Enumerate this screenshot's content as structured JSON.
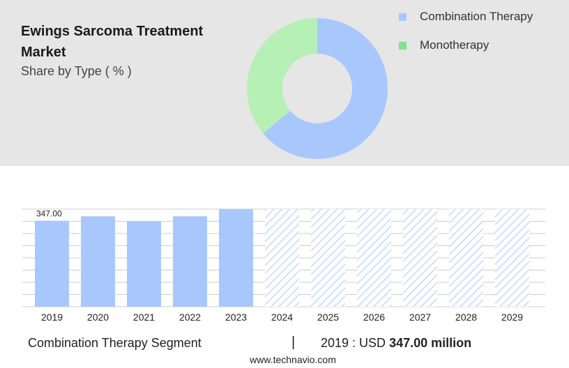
{
  "header": {
    "title": "Ewings Sarcoma Treatment Market",
    "subtitle": "Share by Type ( % )"
  },
  "legend": [
    {
      "label": "Combination Therapy",
      "color": "#a8c8fd"
    },
    {
      "label": "Monotherapy",
      "color": "#7ee38f"
    }
  ],
  "footer": {
    "segment": "Combination Therapy Segment",
    "separator": "|",
    "year_prefix": "2019 : USD ",
    "value": "347.00 million",
    "source": "www.technavio.com"
  },
  "chart_data": [
    {
      "type": "pie",
      "donut": true,
      "slices": [
        {
          "label": "Combination Therapy",
          "value": 64,
          "color": "#a8c8fd"
        },
        {
          "label": "Monotherapy",
          "value": 36,
          "color": "#b6f0b6"
        }
      ]
    },
    {
      "type": "bar",
      "categories": [
        "2019",
        "2020",
        "2021",
        "2022",
        "2023",
        "2024",
        "2025",
        "2026",
        "2027",
        "2028",
        "2029"
      ],
      "values": [
        347.0,
        365,
        345,
        365,
        394,
        394,
        394,
        394,
        394,
        394,
        394
      ],
      "forecast_from": "2024",
      "data_labels": [
        {
          "category": "2019",
          "text": "347.00"
        }
      ],
      "bar_color": "#a8c8fd",
      "ylim": [
        0,
        394
      ],
      "grid": true
    }
  ]
}
